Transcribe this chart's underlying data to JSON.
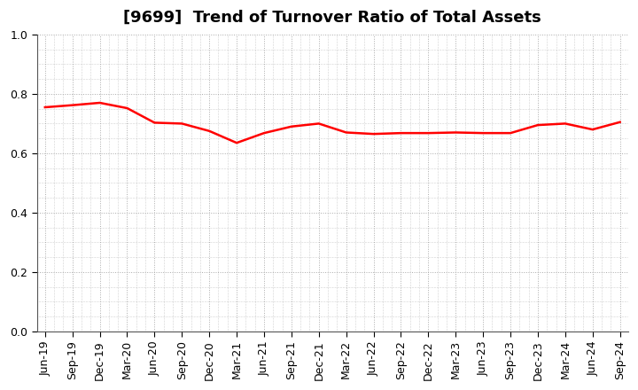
{
  "title": "[9699]  Trend of Turnover Ratio of Total Assets",
  "x_labels": [
    "Jun-19",
    "Sep-19",
    "Dec-19",
    "Mar-20",
    "Jun-20",
    "Sep-20",
    "Dec-20",
    "Mar-21",
    "Jun-21",
    "Sep-21",
    "Dec-21",
    "Mar-22",
    "Jun-22",
    "Sep-22",
    "Dec-22",
    "Mar-23",
    "Jun-23",
    "Sep-23",
    "Dec-23",
    "Mar-24",
    "Jun-24",
    "Sep-24"
  ],
  "y_values": [
    0.755,
    0.762,
    0.77,
    0.752,
    0.703,
    0.7,
    0.675,
    0.635,
    0.668,
    0.69,
    0.7,
    0.67,
    0.665,
    0.668,
    0.668,
    0.67,
    0.668,
    0.668,
    0.695,
    0.7,
    0.68,
    0.705
  ],
  "line_color": "#FF0000",
  "line_width": 1.8,
  "ylim": [
    0.0,
    1.0
  ],
  "yticks": [
    0.0,
    0.2,
    0.4,
    0.6,
    0.8,
    1.0
  ],
  "title_fontsize": 13,
  "background_color": "#ffffff",
  "grid_color": "#aaaaaa",
  "tick_label_fontsize": 9
}
